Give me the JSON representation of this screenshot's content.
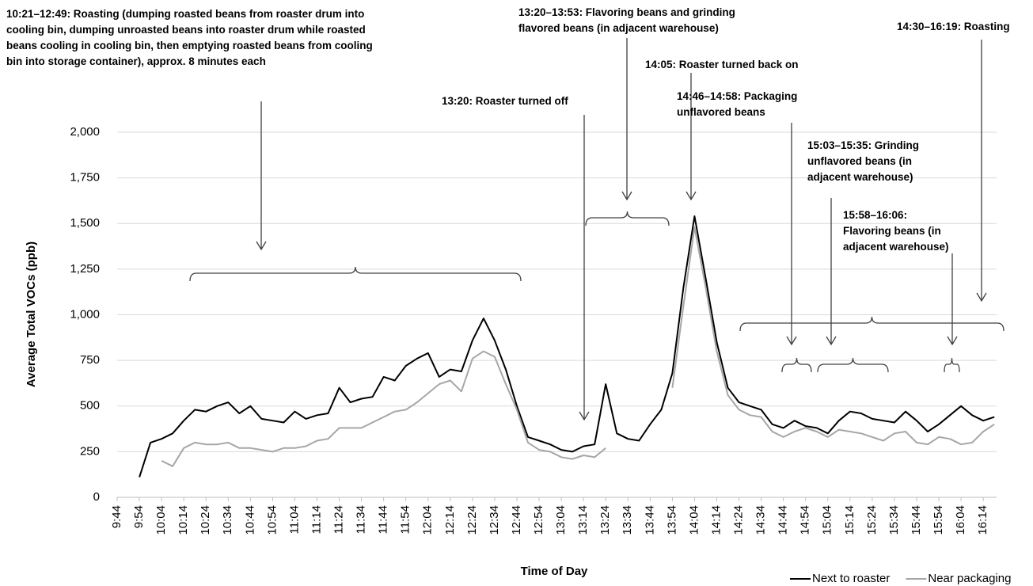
{
  "chart_data": {
    "type": "line",
    "y_label": "Average Total VOCs (ppb)",
    "x_label": "Time of Day",
    "x": [
      594,
      599,
      604,
      609,
      614,
      619,
      624,
      629,
      634,
      639,
      644,
      649,
      654,
      659,
      664,
      669,
      674,
      679,
      684,
      689,
      694,
      699,
      704,
      709,
      714,
      719,
      724,
      729,
      734,
      739,
      744,
      749,
      754,
      759,
      764,
      769,
      774,
      779,
      784,
      789,
      794,
      799,
      804,
      809,
      814,
      819,
      824,
      829,
      834,
      839,
      844,
      849,
      854,
      859,
      864,
      869,
      874,
      879,
      884,
      889,
      894,
      899,
      904,
      909,
      914,
      919,
      924,
      929,
      934,
      939,
      944,
      949,
      954,
      959,
      964,
      969,
      974,
      979
    ],
    "series": [
      {
        "name": "Next to roaster",
        "color": "#000000",
        "values": [
          110,
          300,
          320,
          350,
          420,
          480,
          470,
          500,
          520,
          460,
          500,
          430,
          420,
          410,
          470,
          430,
          450,
          460,
          600,
          520,
          540,
          550,
          660,
          640,
          720,
          760,
          790,
          660,
          700,
          690,
          860,
          980,
          860,
          700,
          500,
          330,
          310,
          290,
          260,
          250,
          280,
          290,
          620,
          350,
          320,
          310,
          400,
          480,
          680,
          1150,
          1540,
          1200,
          850,
          600,
          520,
          500,
          480,
          400,
          380,
          420,
          390,
          380,
          350,
          420,
          470,
          460,
          430,
          420,
          410,
          470,
          420,
          360,
          400,
          450,
          500,
          450,
          420,
          440
        ]
      },
      {
        "name": "Near packaging",
        "color": "#a6a6a6",
        "values": [
          null,
          null,
          200,
          170,
          270,
          300,
          290,
          290,
          300,
          270,
          270,
          260,
          250,
          270,
          270,
          280,
          310,
          320,
          380,
          380,
          380,
          410,
          440,
          470,
          480,
          520,
          570,
          620,
          640,
          580,
          760,
          800,
          770,
          620,
          480,
          300,
          260,
          250,
          220,
          210,
          230,
          220,
          270,
          null,
          null,
          null,
          null,
          null,
          600,
          1050,
          1480,
          1150,
          800,
          560,
          480,
          450,
          440,
          360,
          330,
          360,
          380,
          360,
          330,
          370,
          360,
          350,
          330,
          310,
          350,
          360,
          300,
          290,
          330,
          320,
          290,
          300,
          360,
          400
        ]
      }
    ],
    "xlim": [
      584,
      980
    ],
    "xticks": [
      {
        "value": 584,
        "label": "9:44"
      },
      {
        "value": 594,
        "label": "9:54"
      },
      {
        "value": 604,
        "label": "10:04"
      },
      {
        "value": 614,
        "label": "10:14"
      },
      {
        "value": 624,
        "label": "10:24"
      },
      {
        "value": 634,
        "label": "10:34"
      },
      {
        "value": 644,
        "label": "10:44"
      },
      {
        "value": 654,
        "label": "10:54"
      },
      {
        "value": 664,
        "label": "11:04"
      },
      {
        "value": 674,
        "label": "11:14"
      },
      {
        "value": 684,
        "label": "11:24"
      },
      {
        "value": 694,
        "label": "11:34"
      },
      {
        "value": 704,
        "label": "11:44"
      },
      {
        "value": 714,
        "label": "11:54"
      },
      {
        "value": 724,
        "label": "12:04"
      },
      {
        "value": 734,
        "label": "12:14"
      },
      {
        "value": 744,
        "label": "12:24"
      },
      {
        "value": 754,
        "label": "12:34"
      },
      {
        "value": 764,
        "label": "12:44"
      },
      {
        "value": 774,
        "label": "12:54"
      },
      {
        "value": 784,
        "label": "13:04"
      },
      {
        "value": 794,
        "label": "13:14"
      },
      {
        "value": 804,
        "label": "13:24"
      },
      {
        "value": 814,
        "label": "13:34"
      },
      {
        "value": 824,
        "label": "13:44"
      },
      {
        "value": 834,
        "label": "13:54"
      },
      {
        "value": 844,
        "label": "14:04"
      },
      {
        "value": 854,
        "label": "14:14"
      },
      {
        "value": 864,
        "label": "14:24"
      },
      {
        "value": 874,
        "label": "14:34"
      },
      {
        "value": 884,
        "label": "14:44"
      },
      {
        "value": 894,
        "label": "14:54"
      },
      {
        "value": 904,
        "label": "15:04"
      },
      {
        "value": 914,
        "label": "15:14"
      },
      {
        "value": 924,
        "label": "15:24"
      },
      {
        "value": 934,
        "label": "15:34"
      },
      {
        "value": 944,
        "label": "15:44"
      },
      {
        "value": 954,
        "label": "15:54"
      },
      {
        "value": 964,
        "label": "16:04"
      },
      {
        "value": 974,
        "label": "16:14"
      }
    ],
    "ylim": [
      0,
      2000
    ],
    "yticks": [
      0,
      250,
      500,
      750,
      {
        "value": 1000,
        "label": "1,000"
      },
      {
        "value": 1250,
        "label": "1,250"
      },
      {
        "value": 1500,
        "label": "1,500"
      },
      {
        "value": 1750,
        "label": "1,750"
      },
      {
        "value": 2000,
        "label": "2,000"
      }
    ],
    "grid": true,
    "legend": "bottom-right",
    "annotations": [
      {
        "lines": [
          "10:21–12:49: Roasting (dumping roasted beans from roaster drum into",
          "cooling bin, dumping unroasted beans into roaster drum while roasted",
          "beans cooling in cooling bin, then emptying roasted beans from cooling",
          "bin into storage container), approx. 8 minutes each"
        ]
      },
      {
        "lines": [
          "13:20–13:53:  Flavoring beans and grinding",
          "flavored beans (in adjacent warehouse)"
        ]
      },
      {
        "lines": [
          "14:05:  Roaster turned back on"
        ]
      },
      {
        "lines": [
          "13:20:  Roaster turned off"
        ]
      },
      {
        "lines": [
          "14:46–14:58:  Packaging",
          "unflavored beans"
        ]
      },
      {
        "lines": [
          "15:03–15:35:  Grinding",
          "unflavored beans (in",
          "adjacent warehouse)"
        ]
      },
      {
        "lines": [
          "15:58–16:06:",
          "Flavoring beans (in",
          "adjacent warehouse)"
        ]
      },
      {
        "lines": [
          "14:30–16:19:  Roasting"
        ]
      }
    ]
  }
}
